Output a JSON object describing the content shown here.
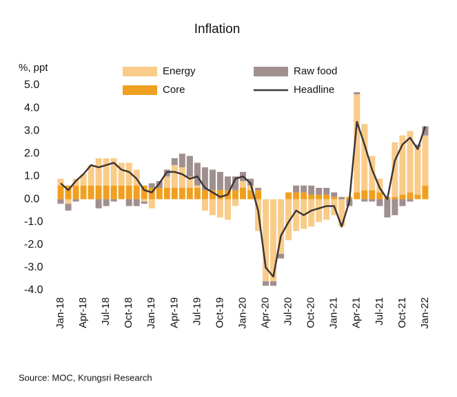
{
  "chart_data": {
    "type": "stacked_bar_line",
    "title": "Inflation",
    "y_label": "%, ppt",
    "source": "Source:  MOC, Krungsri Research",
    "categories": [
      "Jan-18",
      null,
      null,
      "Apr-18",
      null,
      null,
      "Jul-18",
      null,
      null,
      "Oct-18",
      null,
      null,
      "Jan-19",
      null,
      null,
      "Apr-19",
      null,
      null,
      "Jul-19",
      null,
      null,
      "Oct-19",
      null,
      null,
      "Jan-20",
      null,
      null,
      "Apr-20",
      null,
      null,
      "Jul-20",
      null,
      null,
      "Oct-20",
      null,
      null,
      "Jan-21",
      null,
      null,
      "Apr-21",
      null,
      null,
      "Jul-21",
      null,
      null,
      "Oct-21",
      null,
      null,
      "Jan-22"
    ],
    "series": [
      {
        "name": "Core",
        "color": "#f0a020",
        "kind": "bar",
        "values": [
          0.6,
          0.6,
          0.6,
          0.6,
          0.6,
          0.6,
          0.6,
          0.6,
          0.6,
          0.6,
          0.6,
          0.6,
          0.5,
          0.5,
          0.5,
          0.5,
          0.5,
          0.5,
          0.5,
          0.4,
          0.4,
          0.4,
          0.4,
          0.4,
          0.5,
          0.4,
          0.4,
          0.0,
          0.0,
          0.0,
          0.3,
          0.3,
          0.3,
          0.2,
          0.2,
          0.2,
          0.1,
          0.0,
          0.1,
          0.3,
          0.4,
          0.4,
          0.3,
          0.1,
          0.1,
          0.2,
          0.3,
          0.2,
          0.6
        ]
      },
      {
        "name": "Energy",
        "color": "#f9cc8a",
        "kind": "bar",
        "values": [
          0.3,
          -0.2,
          0.3,
          0.5,
          0.9,
          1.2,
          1.2,
          1.2,
          1.0,
          1.0,
          0.7,
          -0.1,
          -0.4,
          0.0,
          0.5,
          1.0,
          0.9,
          0.5,
          0.1,
          -0.5,
          -0.7,
          -0.8,
          -0.9,
          -0.3,
          0.3,
          0.2,
          -1.4,
          -3.6,
          -3.6,
          -2.4,
          -1.8,
          -1.4,
          -1.3,
          -1.2,
          -1.0,
          -0.9,
          -0.7,
          -1.2,
          0.0,
          4.3,
          2.9,
          1.5,
          0.6,
          0.0,
          2.4,
          2.6,
          2.7,
          2.1,
          2.2
        ]
      },
      {
        "name": "Raw food",
        "color": "#a08f8f",
        "kind": "bar",
        "values": [
          -0.2,
          -0.3,
          -0.1,
          0.0,
          0.0,
          -0.4,
          -0.3,
          -0.1,
          0.0,
          -0.3,
          -0.3,
          -0.1,
          0.2,
          0.3,
          0.3,
          0.3,
          0.6,
          0.9,
          1.0,
          1.0,
          0.9,
          0.8,
          0.6,
          0.6,
          0.4,
          0.3,
          0.1,
          -0.2,
          -0.2,
          -0.2,
          0.0,
          0.3,
          0.3,
          0.4,
          0.3,
          0.3,
          0.2,
          0.1,
          -0.3,
          0.1,
          -0.1,
          -0.1,
          -0.3,
          -0.8,
          -0.7,
          -0.3,
          -0.1,
          0.1,
          0.4
        ]
      },
      {
        "name": "Headline",
        "color": "#3d3535",
        "kind": "line",
        "values": [
          0.7,
          0.4,
          0.8,
          1.1,
          1.5,
          1.4,
          1.5,
          1.6,
          1.3,
          1.2,
          0.9,
          0.4,
          0.3,
          0.7,
          1.2,
          1.2,
          1.1,
          0.9,
          1.0,
          0.5,
          0.3,
          0.1,
          0.2,
          0.9,
          1.0,
          0.7,
          -0.5,
          -3.0,
          -3.4,
          -1.6,
          -1.0,
          -0.5,
          -0.7,
          -0.5,
          -0.4,
          -0.3,
          -0.3,
          -1.2,
          -0.1,
          3.4,
          2.4,
          1.3,
          0.5,
          0.0,
          1.7,
          2.4,
          2.7,
          2.2,
          3.2
        ]
      }
    ],
    "ylim": [
      -4,
      5
    ],
    "yticks": [
      {
        "value": -4,
        "label": "-4.0"
      },
      {
        "value": -3,
        "label": "-3.0"
      },
      {
        "value": -2,
        "label": "-2.0"
      },
      {
        "value": -1,
        "label": "-1.0"
      },
      {
        "value": 0,
        "label": "0.0"
      },
      {
        "value": 1,
        "label": "1.0"
      },
      {
        "value": 2,
        "label": "2.0"
      },
      {
        "value": 3,
        "label": "3.0"
      },
      {
        "value": 4,
        "label": "4.0"
      },
      {
        "value": 5,
        "label": "5.0"
      }
    ],
    "grid": false
  }
}
